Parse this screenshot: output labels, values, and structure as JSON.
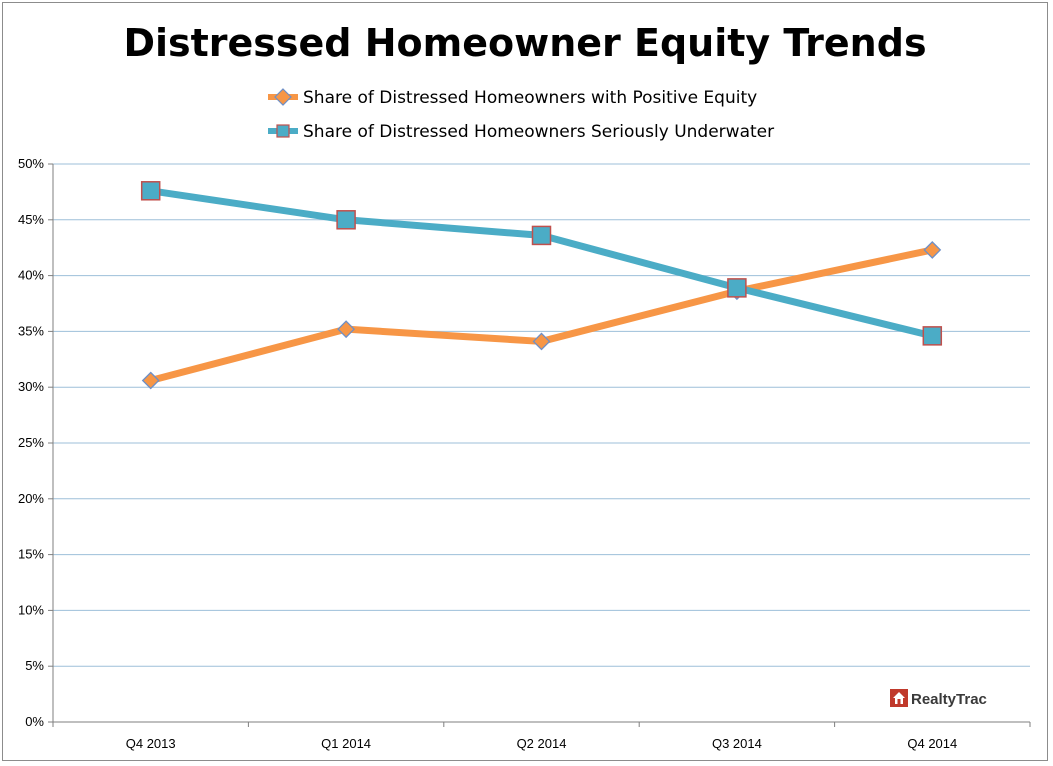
{
  "chart_data": {
    "type": "line",
    "title": "Distressed Homeowner Equity Trends",
    "categories": [
      "Q4 2013",
      "Q1 2014",
      "Q2 2014",
      "Q3 2014",
      "Q4 2014"
    ],
    "series": [
      {
        "name": "Share of Distressed Homeowners with Positive Equity",
        "values": [
          30.6,
          35.2,
          34.1,
          38.6,
          42.3
        ],
        "color": "#f79646",
        "marker": "diamond"
      },
      {
        "name": "Share of Distressed Homeowners Seriously Underwater",
        "values": [
          47.6,
          45.0,
          43.6,
          38.9,
          34.6
        ],
        "color": "#4bacc6",
        "marker": "square"
      }
    ],
    "ylim": [
      0,
      50
    ],
    "yticks": [
      "0%",
      "5%",
      "10%",
      "15%",
      "20%",
      "25%",
      "30%",
      "35%",
      "40%",
      "45%",
      "50%"
    ],
    "ytick_values": [
      0,
      5,
      10,
      15,
      20,
      25,
      30,
      35,
      40,
      45,
      50
    ],
    "grid": true,
    "legend_position": "top-center",
    "marker_border_color": "#c0504d",
    "gridline_color": "#9dbfd9"
  },
  "logo": {
    "text": "RealtyTrac",
    "icon": "house-icon",
    "color": "#c0392b"
  }
}
